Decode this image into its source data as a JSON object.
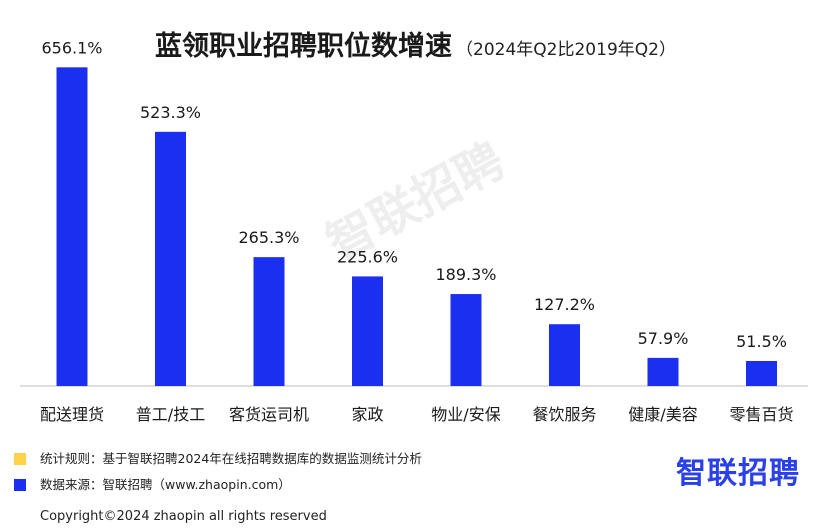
{
  "title": "蓝领职业招聘职位数增速",
  "subtitle": "（2024年Q2比2019年Q2）",
  "watermark": "智联招聘",
  "colors": {
    "bar": "#1b2ff0",
    "rule_swatch": "#ffd24a",
    "source_swatch": "#1b2ff0",
    "logo": "#2a40e8"
  },
  "chart_data": {
    "type": "bar",
    "categories": [
      "配送理货",
      "普工/技工",
      "客货运司机",
      "家政",
      "物业/安保",
      "餐饮服务",
      "健康/美容",
      "零售百货"
    ],
    "values": [
      656.1,
      523.3,
      265.3,
      225.6,
      189.3,
      127.2,
      57.9,
      51.5
    ],
    "data_labels": [
      "656.1%",
      "523.3%",
      "265.3%",
      "225.6%",
      "189.3%",
      "127.2%",
      "57.9%",
      "51.5%"
    ],
    "title": "蓝领职业招聘职位数增速",
    "subtitle": "（2024年Q2比2019年Q2）",
    "ylim": [
      0,
      700
    ],
    "grid": false,
    "legend": "none"
  },
  "footer": {
    "rule_text": "统计规则：基于智联招聘2024年在线招聘数据库的数据监测统计分析",
    "source_text": "数据来源：智联招聘（www.zhaopin.com）",
    "logo_text": "智联招聘",
    "copyright": "Copyright©2024 zhaopin all rights reserved"
  }
}
